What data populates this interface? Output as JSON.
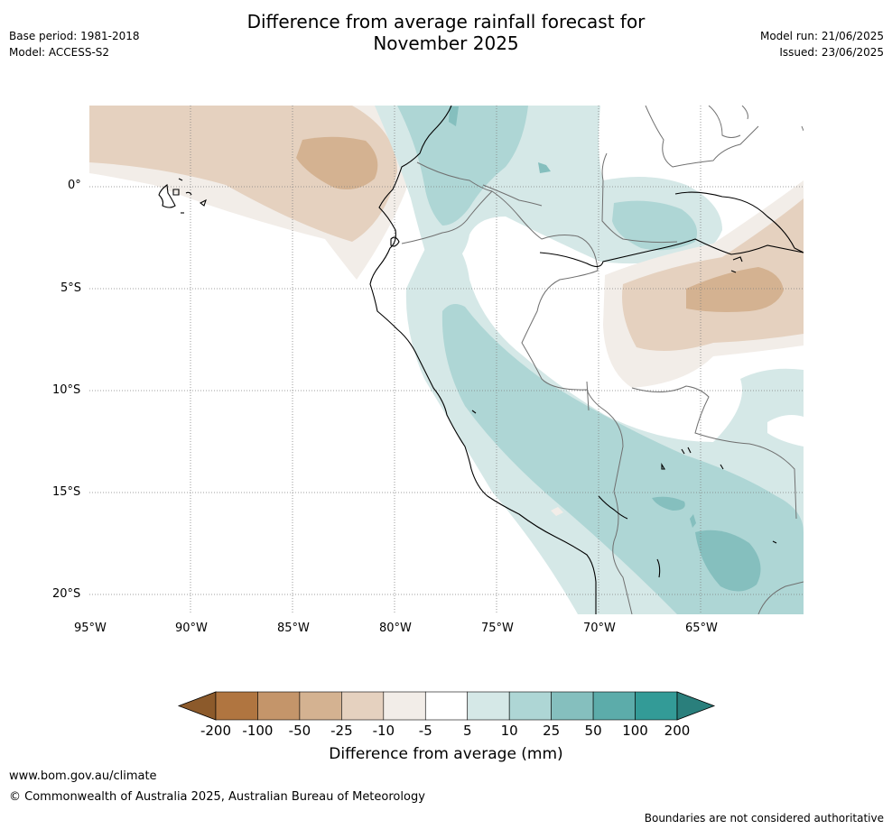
{
  "header": {
    "title_line1": "Difference from average rainfall forecast for",
    "title_line2": "November 2025",
    "base_period": "Base period: 1981-2018",
    "model": "Model: ACCESS-S2",
    "model_run": "Model run: 21/06/2025",
    "issued": "Issued: 23/06/2025"
  },
  "map": {
    "lat_labels": [
      "0°",
      "5°S",
      "10°S",
      "15°S",
      "20°S"
    ],
    "lon_labels": [
      "95°W",
      "90°W",
      "85°W",
      "80°W",
      "75°W",
      "70°W",
      "65°W"
    ]
  },
  "colorbar": {
    "label": "Difference from average (mm)",
    "ticks": [
      "-200",
      "-100",
      "-50",
      "-25",
      "-10",
      "-5",
      "5",
      "10",
      "25",
      "50",
      "100",
      "200"
    ],
    "colors": [
      "#8c5a2b",
      "#b07540",
      "#c4956a",
      "#d4b291",
      "#e5d1bf",
      "#f2ede8",
      "#ffffff",
      "#d5e8e7",
      "#aed6d5",
      "#85bfbe",
      "#5cacaa",
      "#339b97",
      "#2a7f7c"
    ]
  },
  "footer": {
    "url": "www.bom.gov.au/climate",
    "copyright": "© Commonwealth of Australia 2025, Australian Bureau of Meteorology",
    "disclaimer": "Boundaries are not considered authoritative"
  }
}
